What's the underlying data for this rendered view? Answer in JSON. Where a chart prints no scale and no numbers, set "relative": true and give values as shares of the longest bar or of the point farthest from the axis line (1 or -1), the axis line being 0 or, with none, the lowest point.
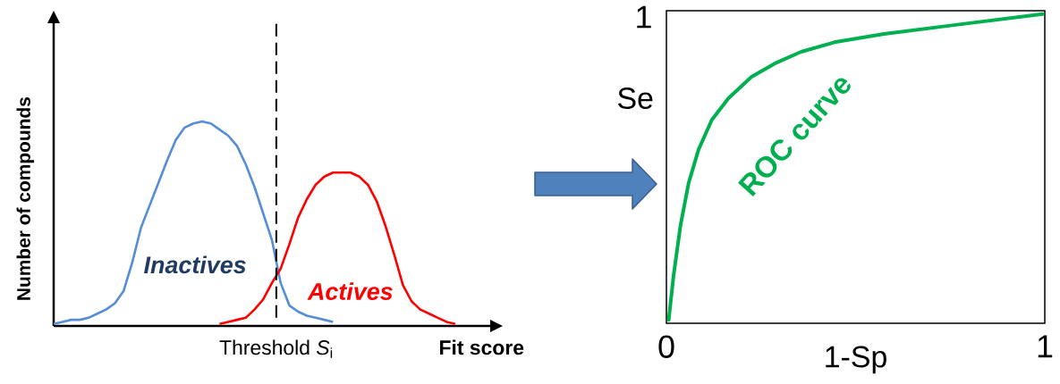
{
  "chart_data": [
    {
      "type": "line",
      "relative": true,
      "xlabel": "Fit score",
      "ylabel": "Number of compounds",
      "categories": [
        null,
        null,
        null,
        null,
        null,
        null,
        null,
        null,
        null,
        null,
        null,
        null,
        null,
        null,
        null,
        null,
        null,
        null,
        null,
        null,
        null,
        null,
        null,
        null,
        null,
        null,
        null,
        null,
        null,
        null,
        null,
        null,
        null,
        null,
        null,
        null,
        null,
        null,
        null,
        null,
        null,
        null,
        null,
        null,
        null,
        null,
        null,
        null,
        null,
        null,
        null
      ],
      "series": [
        {
          "name": "Inactives",
          "color": "#558ed5",
          "values": [
            0.01,
            0.02,
            0.03,
            0.03,
            0.04,
            0.06,
            0.08,
            0.11,
            0.17,
            0.31,
            0.48,
            0.59,
            0.7,
            0.81,
            0.91,
            0.97,
            0.99,
            1.0,
            0.99,
            0.96,
            0.93,
            0.88,
            0.79,
            0.68,
            0.55,
            0.42,
            0.21,
            0.1,
            0.07,
            0.05,
            0.04,
            0.03,
            0.02,
            null,
            null,
            null,
            null,
            null,
            null,
            null,
            null,
            null,
            null,
            null,
            null,
            null,
            null,
            null,
            null,
            null,
            null
          ]
        },
        {
          "name": "Actives",
          "color": "#ff0000",
          "values": [
            null,
            null,
            null,
            null,
            null,
            null,
            null,
            null,
            null,
            null,
            null,
            null,
            null,
            null,
            null,
            null,
            null,
            null,
            null,
            0.01,
            0.02,
            0.03,
            0.04,
            0.08,
            0.13,
            0.21,
            0.28,
            0.4,
            0.53,
            0.62,
            0.69,
            0.73,
            0.75,
            0.75,
            0.75,
            0.73,
            0.69,
            0.61,
            0.49,
            0.35,
            0.2,
            0.12,
            0.08,
            0.06,
            0.04,
            0.02,
            0.01,
            null,
            null,
            null,
            null
          ]
        }
      ],
      "annotations": [
        "Threshold *S*$_{i}$"
      ]
    },
    {
      "type": "line",
      "relative": true,
      "xlabel": "1-Sp",
      "ylabel": "Se",
      "xlim": [
        0,
        1
      ],
      "xticks": [
        0,
        1
      ],
      "annotations": [
        "1"
      ],
      "series": [
        {
          "name": "ROC curve",
          "color": "#00b050",
          "x": [
            0.006,
            0.019,
            0.037,
            0.059,
            0.085,
            0.12,
            0.164,
            0.225,
            0.286,
            0.356,
            0.444,
            0.575,
            0.75,
            0.994
          ],
          "values": [
            0.011,
            0.155,
            0.315,
            0.455,
            0.562,
            0.658,
            0.728,
            0.797,
            0.84,
            0.878,
            0.909,
            0.936,
            0.963,
            1.0
          ]
        }
      ]
    }
  ]
}
